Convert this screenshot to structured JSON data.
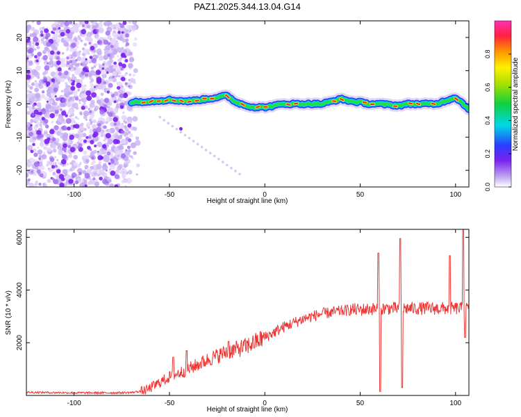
{
  "title": "PAZ1.2025.344.13.04.G14",
  "colors": {
    "snr_line": "#ee3333",
    "axis": "#000000",
    "scatter": "#7a22ee",
    "track_core": "#e8203a",
    "track_edge": "#2a3dff"
  },
  "chart_data": [
    {
      "type": "heatmap",
      "title": "PAZ1.2025.344.13.04.G14",
      "xlabel": "Height of straight line (km)",
      "ylabel": "Frequency (Hz)",
      "xlim": [
        -125,
        107
      ],
      "ylim": [
        -25,
        25
      ],
      "xticks": [
        -100,
        -50,
        0,
        50,
        100
      ],
      "yticks": [
        -20,
        -10,
        0,
        10,
        20
      ],
      "xtick_labels": [
        "-100",
        "-50",
        "0",
        "50",
        "100"
      ],
      "ytick_labels": [
        "-20",
        "-10",
        "0",
        "10",
        "20"
      ],
      "noise_region_x": [
        -125,
        -70
      ],
      "ridge": {
        "x": [
          -70,
          -60,
          -50,
          -40,
          -30,
          -20,
          -15,
          -10,
          -5,
          0,
          5,
          10,
          20,
          30,
          40,
          45,
          50,
          55,
          60,
          70,
          75,
          80,
          90,
          100,
          107
        ],
        "freq": [
          0.5,
          0.8,
          1.2,
          0.8,
          1.5,
          2.5,
          0.5,
          -0.5,
          -1.0,
          -1.0,
          -0.5,
          0.0,
          0.0,
          0.0,
          1.5,
          0.8,
          0.5,
          0.0,
          0.0,
          -0.5,
          0.0,
          0.0,
          0.0,
          2.0,
          -1.5
        ]
      },
      "colorbar": {
        "label": "Normalized spectral amplitude",
        "range": [
          0,
          1
        ],
        "ticks": [
          0.0,
          0.2,
          0.4,
          0.6,
          0.8
        ],
        "tick_labels": [
          "0.0",
          "0.2",
          "0.4",
          "0.6",
          "0.8"
        ]
      }
    },
    {
      "type": "line",
      "xlabel": "Height of straight line (km)",
      "ylabel": "SNR (10 * v/v)",
      "xlim": [
        -125,
        107
      ],
      "ylim": [
        0,
        6300
      ],
      "xticks": [
        -100,
        -50,
        0,
        50,
        100
      ],
      "yticks": [
        2000,
        4000,
        6000
      ],
      "xtick_labels": [
        "-100",
        "-50",
        "0",
        "50",
        "100"
      ],
      "ytick_labels": [
        "2000",
        "4000",
        "6000"
      ],
      "trend": {
        "x": [
          -125,
          -100,
          -80,
          -70,
          -62,
          -55,
          -50,
          -40,
          -30,
          -20,
          -10,
          0,
          10,
          20,
          30,
          40,
          45,
          50,
          60,
          70,
          80,
          90,
          100,
          107
        ],
        "y": [
          120,
          100,
          100,
          110,
          200,
          500,
          700,
          1000,
          1350,
          1650,
          1850,
          2200,
          2600,
          2900,
          3100,
          3200,
          3250,
          3250,
          3300,
          3300,
          3300,
          3300,
          3300,
          3300
        ]
      },
      "spikes": [
        {
          "x": -48,
          "y": 1450
        },
        {
          "x": -41,
          "y": 1700
        },
        {
          "x": -19,
          "y": 2050
        },
        {
          "x": 59.5,
          "y": 5400
        },
        {
          "x": 60.5,
          "y": 150
        },
        {
          "x": 71,
          "y": 5950
        },
        {
          "x": 72,
          "y": 300
        },
        {
          "x": 97,
          "y": 5300
        },
        {
          "x": 104,
          "y": 6300
        },
        {
          "x": 105,
          "y": 2200
        }
      ]
    }
  ]
}
